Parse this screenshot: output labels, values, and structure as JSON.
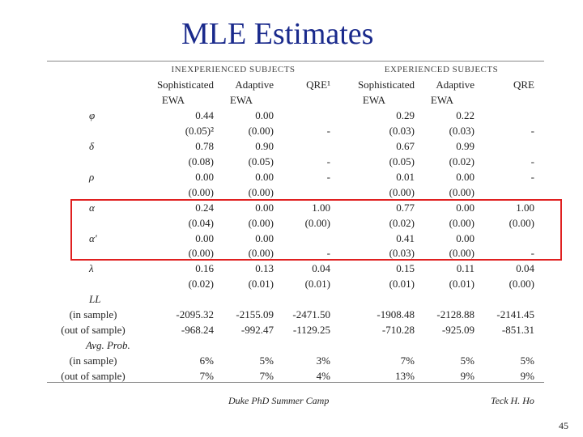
{
  "title": "MLE Estimates",
  "table": {
    "groups": [
      "INEXPERIENCED SUBJECTS",
      "EXPERIENCED SUBJECTS"
    ],
    "columns": [
      {
        "line1": "Sophisticated",
        "line2": "EWA"
      },
      {
        "line1": "Adaptive",
        "line2": "EWA"
      },
      {
        "line1": "QRE¹"
      },
      {
        "line1": "Sophisticated",
        "line2": "EWA"
      },
      {
        "line1": "Adaptive",
        "line2": "EWA"
      },
      {
        "line1": "QRE"
      }
    ],
    "rows": [
      {
        "label": "φ",
        "cells": [
          "0.44",
          "0.00",
          null,
          "0.29",
          "0.22",
          null
        ]
      },
      {
        "cells": [
          "(0.05)²",
          "(0.00)",
          "-",
          "(0.03)",
          "(0.03)",
          "-"
        ]
      },
      {
        "label": "δ",
        "cells": [
          "0.78",
          "0.90",
          null,
          "0.67",
          "0.99",
          null
        ]
      },
      {
        "cells": [
          "(0.08)",
          "(0.05)",
          "-",
          "(0.05)",
          "(0.02)",
          "-"
        ]
      },
      {
        "label": "ρ",
        "cells": [
          "0.00",
          "0.00",
          "-",
          "0.01",
          "0.00",
          "-"
        ]
      },
      {
        "cells": [
          "(0.00)",
          "(0.00)",
          null,
          "(0.00)",
          "(0.00)",
          null
        ]
      },
      {
        "label": "α",
        "cells": [
          "0.24",
          "0.00",
          "1.00",
          "0.77",
          "0.00",
          "1.00"
        ]
      },
      {
        "cells": [
          "(0.04)",
          "(0.00)",
          "(0.00)",
          "(0.02)",
          "(0.00)",
          "(0.00)"
        ]
      },
      {
        "label": "α′",
        "cells": [
          "0.00",
          "0.00",
          null,
          "0.41",
          "0.00",
          null
        ]
      },
      {
        "cells": [
          "(0.00)",
          "(0.00)",
          "-",
          "(0.03)",
          "(0.00)",
          "-"
        ]
      },
      {
        "label": "λ",
        "cells": [
          "0.16",
          "0.13",
          "0.04",
          "0.15",
          "0.11",
          "0.04"
        ]
      },
      {
        "cells": [
          "(0.02)",
          "(0.01)",
          "(0.01)",
          "(0.01)",
          "(0.01)",
          "(0.00)"
        ]
      },
      {
        "label": "LL"
      },
      {
        "label": "(in sample)",
        "cells": [
          "-2095.32",
          "-2155.09",
          "-2471.50",
          "-1908.48",
          "-2128.88",
          "-2141.45"
        ]
      },
      {
        "label": "(out of sample)",
        "cells": [
          "-968.24",
          "-992.47",
          "-1129.25",
          "-710.28",
          "-925.09",
          "-851.31"
        ]
      },
      {
        "label": "Avg. Prob."
      },
      {
        "label": "(in sample)",
        "cells": [
          "6%",
          "5%",
          "3%",
          "7%",
          "5%",
          "5%"
        ]
      },
      {
        "label": "(out of sample)",
        "cells": [
          "7%",
          "7%",
          "4%",
          "13%",
          "9%",
          "9%"
        ]
      }
    ]
  },
  "footer": {
    "left": "Duke PhD Summer Camp",
    "right": "Teck H. Ho",
    "page": "45"
  }
}
